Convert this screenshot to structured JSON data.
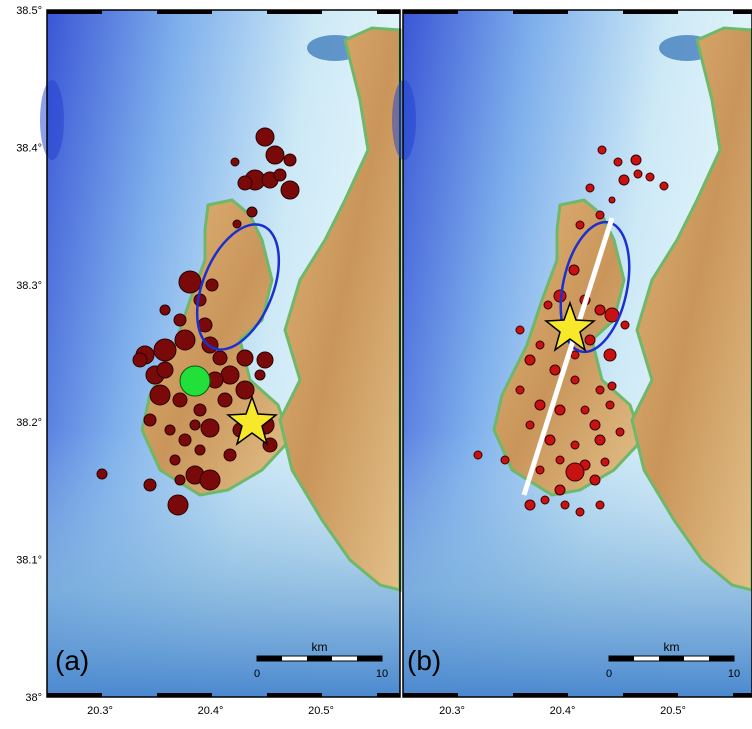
{
  "axes": {
    "y_labels": [
      "38.5°",
      "38.4°",
      "38.3°",
      "38.2°",
      "38.1°",
      "38°"
    ],
    "x_labels": [
      "20.3°",
      "20.4°",
      "20.5°"
    ]
  },
  "panels": [
    {
      "label": "(a)"
    },
    {
      "label": "(b)"
    }
  ],
  "scale_bar": {
    "unit": "km",
    "start": "0",
    "end": "10"
  }
}
